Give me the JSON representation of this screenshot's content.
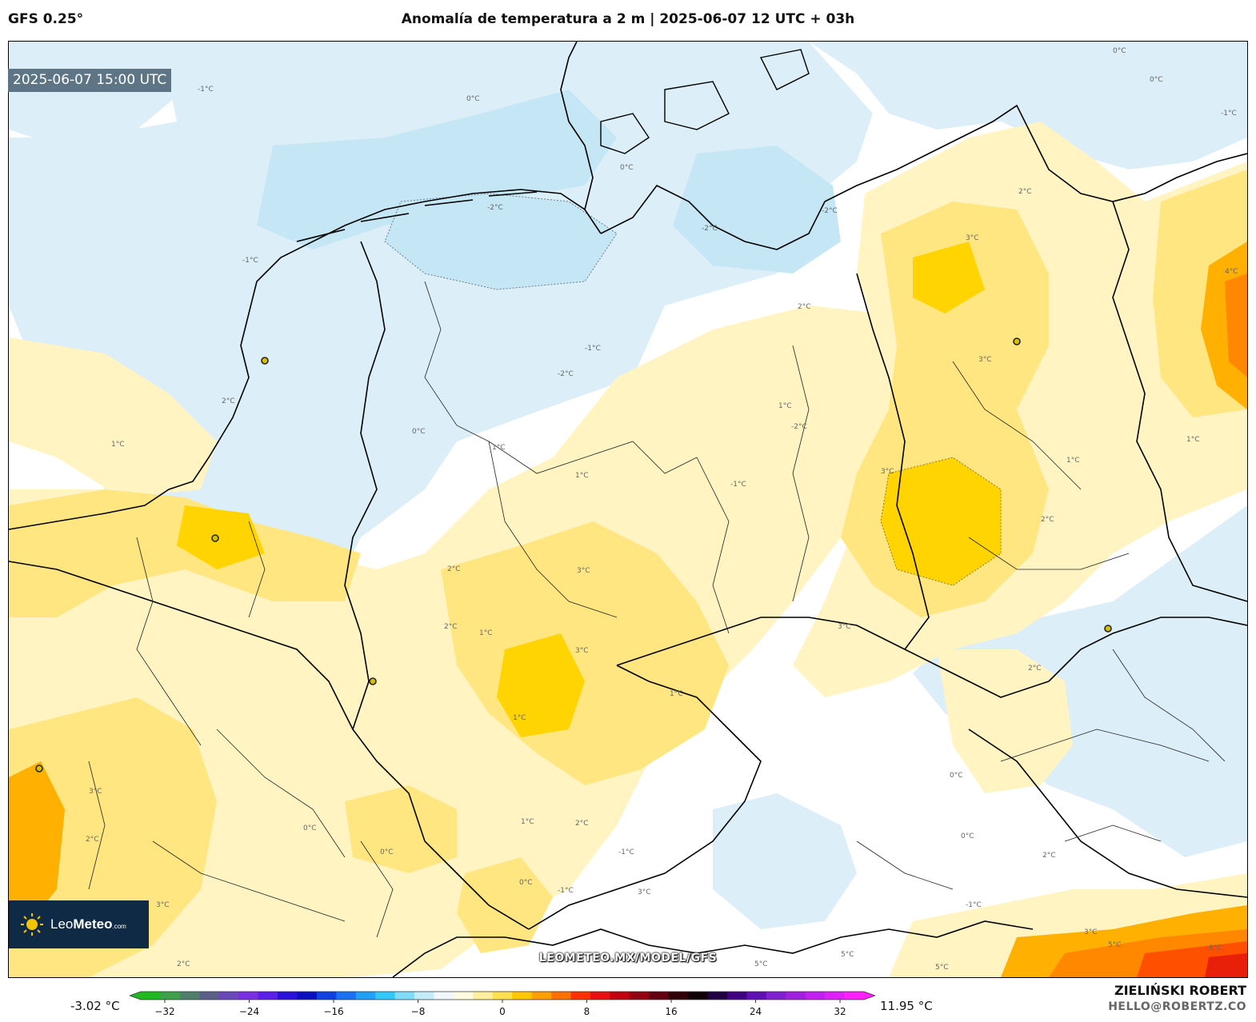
{
  "header": {
    "model": "GFS 0.25°",
    "title": "Anomalía de temperatura a 2 m | 2025-06-07 12 UTC + 03h"
  },
  "map": {
    "valid_time": "2025-06-07 15:00 UTC",
    "watermark_url": "LEOMETEO.MX/MODEL/GFS",
    "logo": {
      "prefix": "Leo",
      "bold": "Meteo",
      "suffix": ".com"
    },
    "contour_labels": [
      "0°C",
      "-1°C",
      "-2°C",
      "1°C",
      "2°C",
      "3°C",
      "4°C",
      "5°C",
      "6°C"
    ],
    "colors": {
      "minus2": "#c4e6f5",
      "minus1": "#dceef8",
      "zero": "#ffffff",
      "plus1": "#fff4c2",
      "plus2": "#ffe680",
      "plus3": "#ffd400",
      "plus4": "#ffb000",
      "plus5": "#ff8800",
      "plus6": "#ff5000",
      "plus8": "#e8200a"
    }
  },
  "legend": {
    "min_label": "-3.02 °C",
    "max_label": "11.95 °C",
    "ticks": [
      "−32",
      "−24",
      "−16",
      "−8",
      "0",
      "8",
      "16",
      "24",
      "32"
    ],
    "colors": [
      "#22b822",
      "#3f9f4a",
      "#4f7f6a",
      "#5b5f8a",
      "#6a48b8",
      "#7a2fe0",
      "#5a1fe8",
      "#2a10d8",
      "#0a10c0",
      "#1040e0",
      "#1a70f0",
      "#20a0f8",
      "#30c8f8",
      "#80dcf8",
      "#c4ecf8",
      "#f0f8fc",
      "#fffbe0",
      "#fff0a0",
      "#ffe050",
      "#ffc800",
      "#ffa000",
      "#ff7000",
      "#ff3000",
      "#e81010",
      "#c00010",
      "#900010",
      "#600010",
      "#300008",
      "#100008",
      "#200040",
      "#400080",
      "#6010b0",
      "#8020d0",
      "#a020e0",
      "#c020f0",
      "#e020f8",
      "#ff20ff"
    ]
  },
  "credits": {
    "author": "ZIELIŃSKI ROBERT",
    "email": "HELLO@ROBERTZ.CO"
  }
}
